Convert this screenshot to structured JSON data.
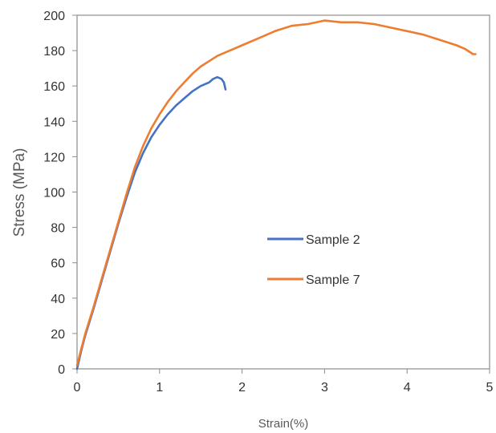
{
  "chart_data": {
    "type": "line",
    "title": "",
    "xlabel": "Strain(%)",
    "ylabel": "Stress (MPa)",
    "xlim": [
      0,
      5
    ],
    "ylim": [
      0,
      200
    ],
    "xticks": [
      "0",
      "1",
      "2",
      "3",
      "4",
      "5"
    ],
    "yticks": [
      "0",
      "20",
      "40",
      "60",
      "80",
      "100",
      "120",
      "140",
      "160",
      "180",
      "200"
    ],
    "grid": false,
    "legend_position": "center-right",
    "series": [
      {
        "name": "Sample 2",
        "color": "#4472C4",
        "x": [
          0,
          0.05,
          0.1,
          0.2,
          0.3,
          0.4,
          0.5,
          0.6,
          0.7,
          0.8,
          0.9,
          1.0,
          1.1,
          1.2,
          1.3,
          1.4,
          1.5,
          1.6,
          1.65,
          1.7,
          1.75,
          1.78,
          1.8
        ],
        "y": [
          0,
          10,
          19,
          34,
          50,
          66,
          82,
          97,
          111,
          122,
          131,
          138,
          144,
          149,
          153,
          157,
          160,
          162,
          164,
          165,
          164,
          162,
          158
        ]
      },
      {
        "name": "Sample 7",
        "color": "#ED7D31",
        "x": [
          0,
          0.05,
          0.1,
          0.2,
          0.3,
          0.4,
          0.5,
          0.6,
          0.7,
          0.8,
          0.9,
          1.0,
          1.1,
          1.2,
          1.3,
          1.4,
          1.5,
          1.6,
          1.7,
          1.8,
          1.9,
          2.0,
          2.2,
          2.4,
          2.6,
          2.8,
          3.0,
          3.2,
          3.4,
          3.6,
          3.8,
          4.0,
          4.2,
          4.4,
          4.6,
          4.7,
          4.8,
          4.83
        ],
        "y": [
          2,
          11,
          20,
          35,
          51,
          67,
          83,
          99,
          114,
          126,
          136,
          144,
          151,
          157,
          162,
          167,
          171,
          174,
          177,
          179,
          181,
          183,
          187,
          191,
          194,
          195,
          197,
          196,
          196,
          195,
          193,
          191,
          189,
          186,
          183,
          181,
          178,
          178
        ]
      }
    ]
  }
}
